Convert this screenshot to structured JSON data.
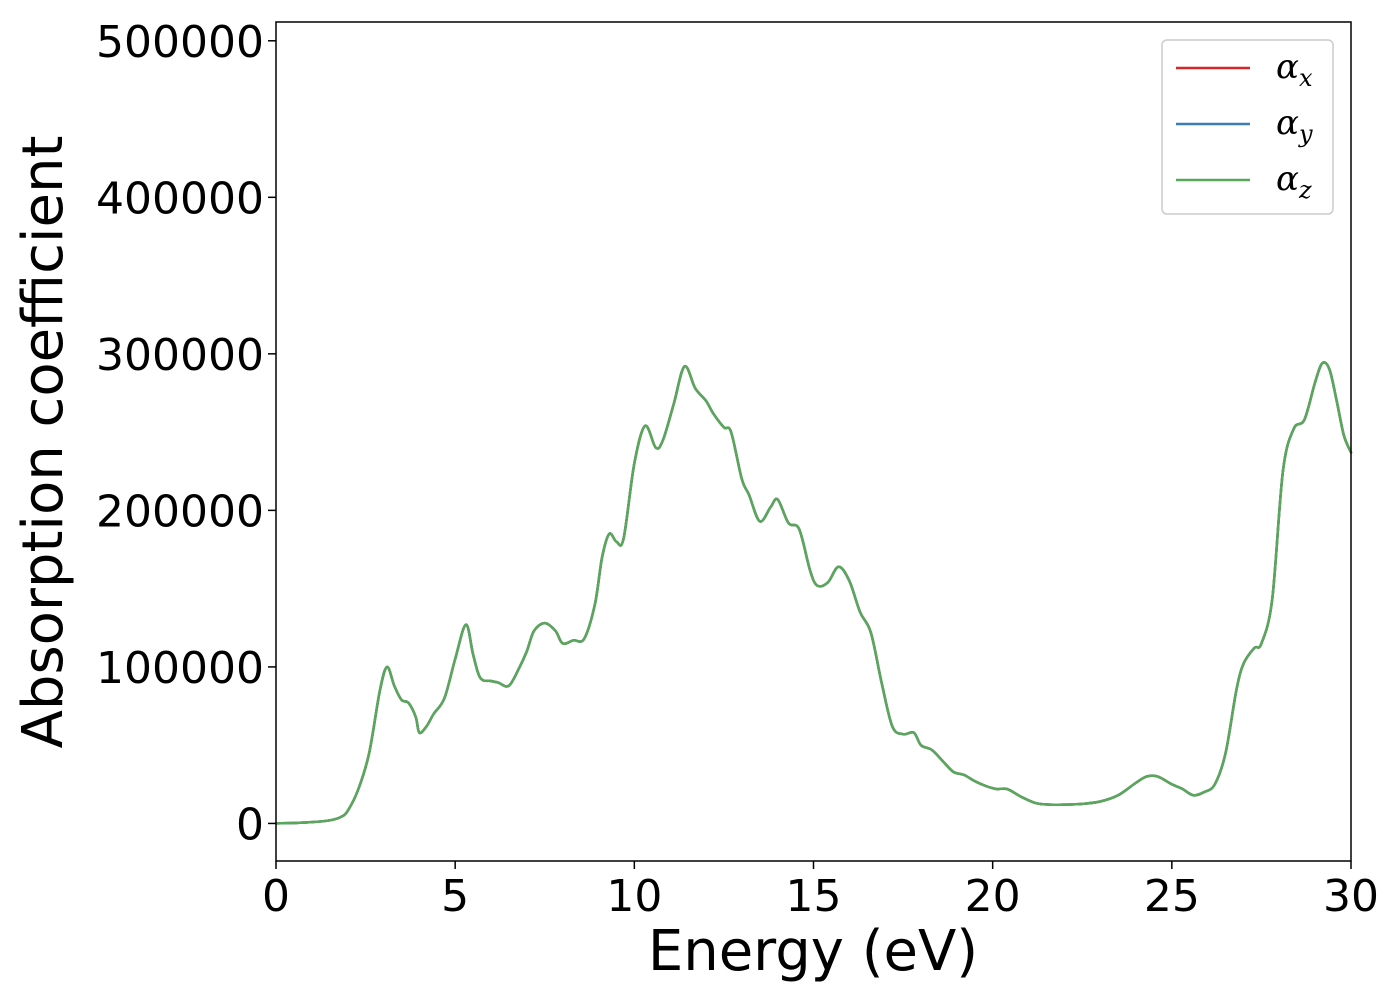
{
  "chart_data": {
    "type": "line",
    "title": "",
    "xlabel": "Energy (eV)",
    "ylabel": "Absorption coefficient",
    "xlim": [
      0,
      30
    ],
    "ylim": [
      -24000,
      512000
    ],
    "xticks": [
      0,
      5,
      10,
      15,
      20,
      25,
      30
    ],
    "xtick_labels": [
      "0",
      "5",
      "10",
      "15",
      "20",
      "25",
      "30"
    ],
    "yticks": [
      0,
      100000,
      200000,
      300000,
      400000,
      500000
    ],
    "ytick_labels": [
      "0",
      "100000",
      "200000",
      "300000",
      "400000",
      "500000"
    ],
    "grid": false,
    "legend_position": "top-right",
    "x": [
      0,
      0.5,
      1.0,
      1.5,
      1.8,
      2.0,
      2.3,
      2.6,
      2.9,
      3.1,
      3.3,
      3.5,
      3.7,
      3.9,
      4.0,
      4.2,
      4.4,
      4.7,
      5.0,
      5.3,
      5.5,
      5.7,
      6.0,
      6.2,
      6.5,
      6.8,
      7.0,
      7.2,
      7.5,
      7.8,
      8.0,
      8.3,
      8.6,
      8.9,
      9.1,
      9.3,
      9.5,
      9.7,
      10.0,
      10.3,
      10.6,
      10.8,
      11.1,
      11.4,
      11.7,
      12.0,
      12.2,
      12.5,
      12.7,
      13.0,
      13.2,
      13.5,
      13.8,
      14.0,
      14.3,
      14.6,
      14.9,
      15.1,
      15.4,
      15.7,
      16.0,
      16.3,
      16.6,
      16.9,
      17.2,
      17.5,
      17.8,
      18.0,
      18.3,
      18.6,
      18.9,
      19.2,
      19.5,
      19.8,
      20.1,
      20.4,
      20.8,
      21.2,
      21.6,
      22.0,
      22.5,
      23.0,
      23.5,
      24.0,
      24.3,
      24.6,
      25.0,
      25.3,
      25.6,
      25.9,
      26.2,
      26.5,
      26.8,
      27.0,
      27.3,
      27.5,
      27.8,
      28.1,
      28.4,
      28.7,
      29.0,
      29.2,
      29.4,
      29.6,
      29.8,
      30.0
    ],
    "series": [
      {
        "name": "αx",
        "label_base": "α",
        "label_sub": "x",
        "color": "#d62728",
        "values": [
          0,
          300,
          800,
          2000,
          4000,
          8000,
          22000,
          45000,
          85000,
          100000,
          88000,
          79000,
          77000,
          68000,
          58000,
          62000,
          70000,
          80000,
          105000,
          127000,
          108000,
          93000,
          91000,
          90000,
          88000,
          100000,
          110000,
          123000,
          128000,
          123000,
          115000,
          117000,
          118000,
          140000,
          170000,
          185000,
          180000,
          182000,
          230000,
          254000,
          240000,
          245000,
          268000,
          292000,
          278000,
          270000,
          262000,
          253000,
          250000,
          220000,
          210000,
          193000,
          202000,
          207000,
          192000,
          188000,
          162000,
          152000,
          154000,
          164000,
          155000,
          135000,
          122000,
          90000,
          62000,
          57000,
          58000,
          50000,
          47000,
          40000,
          33000,
          31000,
          27000,
          24000,
          22000,
          22000,
          17000,
          13000,
          12000,
          12000,
          12500,
          14000,
          18000,
          26000,
          30000,
          30000,
          25000,
          22000,
          18000,
          20000,
          25000,
          45000,
          85000,
          102000,
          112000,
          115000,
          143000,
          225000,
          252000,
          258000,
          282000,
          294000,
          290000,
          270000,
          248000,
          237000
        ]
      },
      {
        "name": "αy",
        "label_base": "α",
        "label_sub": "y",
        "color": "#3b7db4",
        "values": [
          0,
          300,
          800,
          2000,
          4000,
          8000,
          22000,
          45000,
          85000,
          100000,
          88000,
          79000,
          77000,
          68000,
          58000,
          62000,
          70000,
          80000,
          105000,
          127000,
          108000,
          93000,
          91000,
          90000,
          88000,
          100000,
          110000,
          123000,
          128000,
          123000,
          115000,
          117000,
          118000,
          140000,
          170000,
          185000,
          180000,
          182000,
          230000,
          254000,
          240000,
          245000,
          268000,
          292000,
          278000,
          270000,
          262000,
          253000,
          250000,
          220000,
          210000,
          193000,
          202000,
          207000,
          192000,
          188000,
          162000,
          152000,
          154000,
          164000,
          155000,
          135000,
          122000,
          90000,
          62000,
          57000,
          58000,
          50000,
          47000,
          40000,
          33000,
          31000,
          27000,
          24000,
          22000,
          22000,
          17000,
          13000,
          12000,
          12000,
          12500,
          14000,
          18000,
          26000,
          30000,
          30000,
          25000,
          22000,
          18000,
          20000,
          25000,
          45000,
          85000,
          102000,
          112000,
          115000,
          143000,
          225000,
          252000,
          258000,
          282000,
          294000,
          290000,
          270000,
          248000,
          237000
        ]
      },
      {
        "name": "αz",
        "label_base": "α",
        "label_sub": "z",
        "color": "#59a85a",
        "values": [
          0,
          300,
          800,
          2000,
          4000,
          8000,
          22000,
          45000,
          85000,
          100000,
          88000,
          79000,
          77000,
          68000,
          58000,
          62000,
          70000,
          80000,
          105000,
          127000,
          108000,
          93000,
          91000,
          90000,
          88000,
          100000,
          110000,
          123000,
          128000,
          123000,
          115000,
          117000,
          118000,
          140000,
          170000,
          185000,
          180000,
          182000,
          230000,
          254000,
          240000,
          245000,
          268000,
          292000,
          278000,
          270000,
          262000,
          253000,
          250000,
          220000,
          210000,
          193000,
          202000,
          207000,
          192000,
          188000,
          162000,
          152000,
          154000,
          164000,
          155000,
          135000,
          122000,
          90000,
          62000,
          57000,
          58000,
          50000,
          47000,
          40000,
          33000,
          31000,
          27000,
          24000,
          22000,
          22000,
          17000,
          13000,
          12000,
          12000,
          12500,
          14000,
          18000,
          26000,
          30000,
          30000,
          25000,
          22000,
          18000,
          20000,
          25000,
          45000,
          85000,
          102000,
          112000,
          115000,
          143000,
          225000,
          252000,
          258000,
          282000,
          294000,
          290000,
          270000,
          248000,
          237000
        ]
      }
    ]
  }
}
